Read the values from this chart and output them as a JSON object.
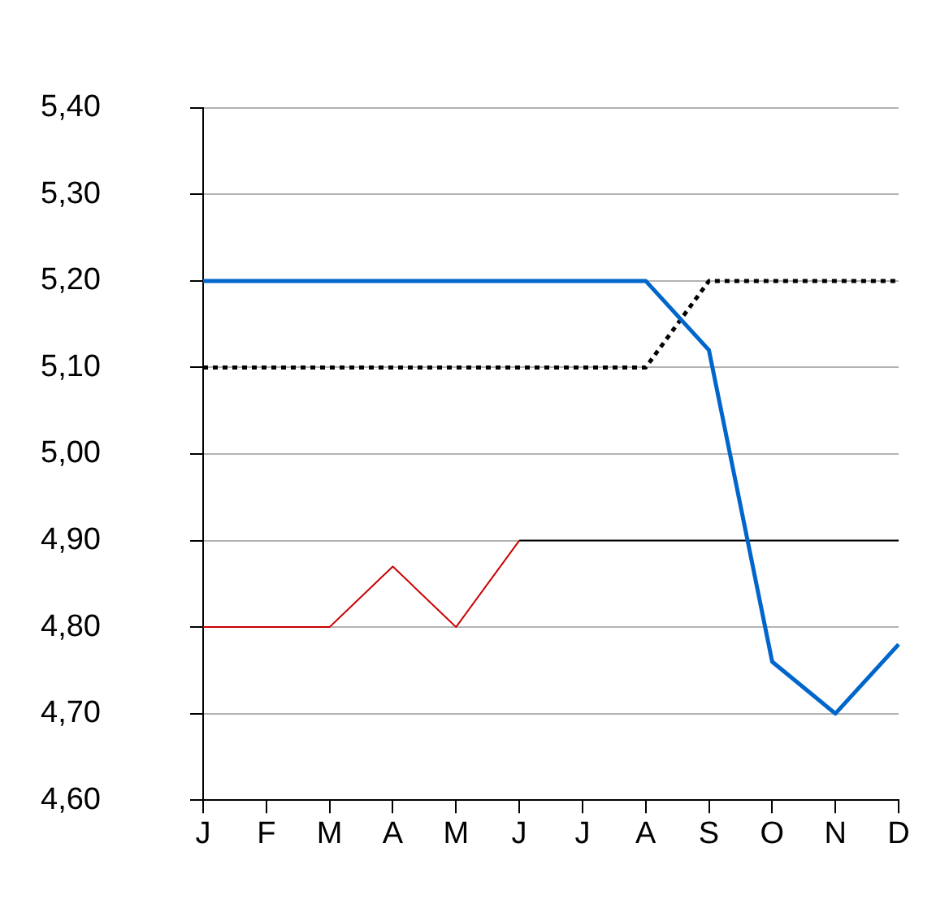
{
  "chart_data": {
    "type": "line",
    "categories": [
      "J",
      "F",
      "M",
      "A",
      "M",
      "J",
      "J",
      "A",
      "S",
      "O",
      "N",
      "D"
    ],
    "series": [
      {
        "color": "#0066cc",
        "values": [
          5.2,
          5.2,
          5.2,
          5.2,
          5.2,
          5.2,
          5.2,
          5.2,
          5.12,
          4.76,
          4.7,
          4.78
        ]
      },
      {
        "color": "#000000",
        "line_style": "dotted",
        "values": [
          5.1,
          5.1,
          5.1,
          5.1,
          5.1,
          5.1,
          5.1,
          5.1,
          5.2,
          5.2,
          5.2,
          5.2
        ]
      },
      {
        "color": "#cc0000",
        "values": [
          4.8,
          4.8,
          4.8,
          4.87,
          4.8,
          4.9,
          null,
          null,
          null,
          null,
          null,
          null
        ]
      },
      {
        "color": "#000000",
        "values": [
          null,
          null,
          null,
          null,
          null,
          4.9,
          4.9,
          4.9,
          4.9,
          4.9,
          4.9,
          4.9
        ]
      }
    ],
    "ylim": [
      4.6,
      5.4
    ],
    "yticks": [
      {
        "value": 4.6,
        "label": "4,60"
      },
      {
        "value": 4.7,
        "label": "4,70"
      },
      {
        "value": 4.8,
        "label": "4,80"
      },
      {
        "value": 4.9,
        "label": "4,90"
      },
      {
        "value": 5.0,
        "label": "5,00"
      },
      {
        "value": 5.1,
        "label": "5,10"
      },
      {
        "value": 5.2,
        "label": "5,20"
      },
      {
        "value": 5.3,
        "label": "5,30"
      },
      {
        "value": 5.4,
        "label": "5,40"
      }
    ],
    "grid": "y",
    "legend": false,
    "marker": "none",
    "line_style": "solid"
  }
}
